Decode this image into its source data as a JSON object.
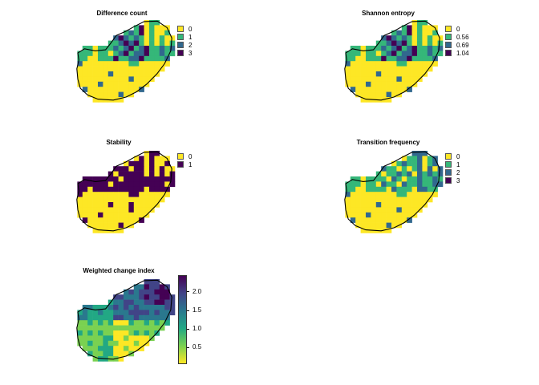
{
  "palette": {
    "v_yellow": "#FDE725",
    "v_green": "#35B779",
    "v_teal": "#31688E",
    "v_purple": "#440154",
    "outline": "#000000"
  },
  "maps": [
    {
      "id": "difference-count",
      "title": "Difference count",
      "legend_type": "categorical",
      "legend": [
        {
          "label": "0",
          "color": "#FDE725"
        },
        {
          "label": "1",
          "color": "#35B779"
        },
        {
          "label": "2",
          "color": "#31688E"
        },
        {
          "label": "3",
          "color": "#440154"
        }
      ]
    },
    {
      "id": "shannon-entropy",
      "title": "Shannon entropy",
      "legend_type": "categorical",
      "legend": [
        {
          "label": "0",
          "color": "#FDE725"
        },
        {
          "label": "0.56",
          "color": "#35B779"
        },
        {
          "label": "0.69",
          "color": "#31688E"
        },
        {
          "label": "1.04",
          "color": "#440154"
        }
      ]
    },
    {
      "id": "stability",
      "title": "Stability",
      "legend_type": "categorical",
      "legend": [
        {
          "label": "0",
          "color": "#FDE725"
        },
        {
          "label": "1",
          "color": "#440154"
        }
      ]
    },
    {
      "id": "transition-frequency",
      "title": "Transition frequency",
      "legend_type": "categorical",
      "legend": [
        {
          "label": "0",
          "color": "#FDE725"
        },
        {
          "label": "1",
          "color": "#35B779"
        },
        {
          "label": "2",
          "color": "#31688E"
        },
        {
          "label": "3",
          "color": "#440154"
        }
      ]
    },
    {
      "id": "weighted-change-index",
      "title": "Weighted change index",
      "legend_type": "continuous",
      "range": [
        0.05,
        2.45
      ],
      "ticks": [
        "0.5",
        "1.0",
        "1.5",
        "2.0"
      ],
      "tick_values": [
        0.5,
        1.0,
        1.5,
        2.0
      ],
      "gradient": [
        "#FDE725",
        "#7AD151",
        "#22A884",
        "#2A788E",
        "#414487",
        "#440154"
      ]
    }
  ]
}
